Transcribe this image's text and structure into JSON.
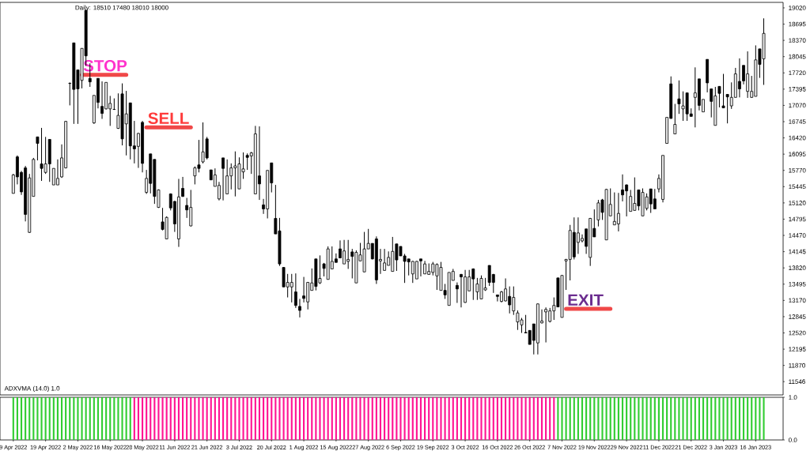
{
  "chart_data": [
    {
      "type": "candlestick",
      "title": "Daily:  18510  17480  18010  18000",
      "categories": [
        "9 Apr 2022",
        null,
        null,
        null,
        null,
        null,
        null,
        null,
        "19 Apr 2022",
        null,
        null,
        null,
        null,
        null,
        null,
        null,
        "2 May 2022",
        null,
        null,
        null,
        null,
        null,
        null,
        null,
        "16 May 2022",
        null,
        null,
        null,
        null,
        null,
        null,
        null,
        "28 May 2022",
        null,
        null,
        null,
        null,
        null,
        null,
        null,
        "11 Jun 2022",
        null,
        null,
        null,
        null,
        null,
        null,
        null,
        "21 Jun 2022",
        null,
        null,
        null,
        null,
        null,
        null,
        null,
        "3 Jul 2022",
        null,
        null,
        null,
        null,
        null,
        null,
        null,
        "20 Jul 2022",
        null,
        null,
        null,
        null,
        null,
        null,
        null,
        "1 Aug 2022",
        null,
        null,
        null,
        null,
        null,
        null,
        null,
        "15 Aug 2022",
        null,
        null,
        null,
        null,
        null,
        null,
        null,
        "27 Aug 2022",
        null,
        null,
        null,
        null,
        null,
        null,
        null,
        "6 Sep 2022",
        null,
        null,
        null,
        null,
        null,
        null,
        null,
        "19 Sep 2022",
        null,
        null,
        null,
        null,
        null,
        null,
        null,
        "3 Oct 2022",
        null,
        null,
        null,
        null,
        null,
        null,
        null,
        "16 Oct 2022",
        null,
        null,
        null,
        null,
        null,
        null,
        null,
        "26 Oct 2022",
        null,
        null,
        null,
        null,
        null,
        null,
        null,
        "7 Nov 2022",
        null,
        null,
        null,
        null,
        null,
        null,
        null,
        "19 Nov 2022",
        null,
        null,
        null,
        null,
        null,
        null,
        null,
        "29 Nov 2022",
        null,
        null,
        null,
        null,
        null,
        null,
        null,
        "11 Dec 2022",
        null,
        null,
        null,
        null,
        null,
        null,
        null,
        "21 Dec 2022",
        null,
        null,
        null,
        null,
        null,
        null,
        null,
        "3 Jan 2023",
        null,
        null,
        null,
        null,
        null,
        null,
        null,
        "16 Jan 2023",
        null,
        null
      ],
      "ohlc": [
        [
          15310,
          15700,
          15310,
          15680
        ],
        [
          16040,
          16070,
          15490,
          15640
        ],
        [
          15730,
          15760,
          15280,
          15340
        ],
        [
          15820,
          15860,
          14750,
          14890
        ],
        [
          14530,
          15700,
          14520,
          15620
        ],
        [
          15250,
          16020,
          15250,
          15990
        ],
        [
          16440,
          16440,
          15970,
          16310
        ],
        [
          15900,
          16620,
          15560,
          15810
        ],
        [
          15730,
          16440,
          15700,
          15900
        ],
        [
          16390,
          16390,
          15540,
          15900
        ],
        [
          15480,
          15810,
          15480,
          15810
        ],
        [
          15480,
          15990,
          15480,
          15610
        ],
        [
          15640,
          16290,
          15620,
          16020
        ],
        [
          15820,
          16760,
          15810,
          16750
        ],
        [
          17510,
          17530,
          17070,
          17510
        ],
        [
          18320,
          18320,
          16700,
          17390
        ],
        [
          17780,
          17780,
          16700,
          17400
        ],
        [
          17570,
          18210,
          17410,
          18210
        ],
        [
          18970,
          18990,
          17860,
          18060
        ],
        [
          17610,
          17910,
          17440,
          17540
        ],
        [
          16720,
          17270,
          16700,
          17270
        ],
        [
          17610,
          17610,
          17010,
          17130
        ],
        [
          17050,
          17550,
          16800,
          16910
        ],
        [
          17000,
          17530,
          16990,
          17530
        ],
        [
          17000,
          17260,
          16660,
          17110
        ],
        [
          16990,
          17210,
          16980,
          16990
        ],
        [
          16610,
          17310,
          16600,
          16870
        ],
        [
          17300,
          17510,
          16270,
          16400
        ],
        [
          16700,
          17360,
          16070,
          16900
        ],
        [
          17120,
          17120,
          15990,
          16260
        ],
        [
          16260,
          16760,
          15910,
          16200
        ],
        [
          16250,
          16520,
          15820,
          16510
        ],
        [
          16730,
          16760,
          15730,
          15910
        ],
        [
          15330,
          15780,
          15300,
          15610
        ],
        [
          16100,
          16100,
          15310,
          15510
        ],
        [
          15990,
          15990,
          15100,
          15250
        ],
        [
          15030,
          15390,
          15020,
          15380
        ],
        [
          14740,
          15020,
          14570,
          14590
        ],
        [
          14400,
          14850,
          14400,
          14830
        ],
        [
          15300,
          15310,
          14970,
          15020
        ],
        [
          15150,
          15160,
          14540,
          14700
        ],
        [
          14400,
          15600,
          14240,
          15240
        ],
        [
          15410,
          15640,
          15240,
          15250
        ],
        [
          15070,
          15220,
          14820,
          14980
        ],
        [
          14660,
          15380,
          14650,
          15030
        ],
        [
          15660,
          15850,
          15490,
          15820
        ],
        [
          15880,
          16380,
          15730,
          15810
        ],
        [
          15940,
          16730,
          15910,
          16140
        ],
        [
          16400,
          16440,
          15990,
          16020
        ],
        [
          15780,
          15780,
          15580,
          15580
        ],
        [
          15450,
          15810,
          15450,
          15680
        ],
        [
          15200,
          15540,
          15170,
          15470
        ],
        [
          16020,
          16020,
          15170,
          15810
        ],
        [
          15300,
          15990,
          15300,
          15660
        ],
        [
          15660,
          15910,
          15390,
          15820
        ],
        [
          15820,
          16150,
          15250,
          15860
        ],
        [
          15400,
          16030,
          15400,
          15900
        ],
        [
          15740,
          16130,
          15600,
          15800
        ],
        [
          16070,
          16110,
          15780,
          16030
        ],
        [
          16060,
          16140,
          15700,
          16120
        ],
        [
          15300,
          16660,
          15300,
          16500
        ],
        [
          15660,
          16650,
          15180,
          15500
        ],
        [
          15080,
          15200,
          14900,
          15000
        ],
        [
          15000,
          15770,
          14810,
          15770
        ],
        [
          15920,
          15920,
          15330,
          15520
        ],
        [
          14810,
          15480,
          14500,
          14500
        ],
        [
          14560,
          14820,
          13860,
          13900
        ],
        [
          13830,
          13830,
          13440,
          13440
        ],
        [
          13440,
          13700,
          13230,
          13530
        ],
        [
          13440,
          13700,
          13130,
          13530
        ],
        [
          13340,
          13710,
          13020,
          13070
        ],
        [
          13050,
          13200,
          12830,
          12970
        ],
        [
          13260,
          13640,
          13130,
          13210
        ],
        [
          13140,
          13540,
          12990,
          13530
        ],
        [
          13370,
          13810,
          13370,
          13520
        ],
        [
          14000,
          14000,
          13370,
          13450
        ],
        [
          13520,
          14070,
          13500,
          13610
        ],
        [
          13900,
          13920,
          13650,
          13810
        ],
        [
          13590,
          14250,
          13590,
          14200
        ],
        [
          13800,
          14250,
          13800,
          13950
        ],
        [
          14000,
          14110,
          13930,
          13930
        ],
        [
          14200,
          14370,
          14020,
          14020
        ],
        [
          13900,
          14380,
          13900,
          14160
        ],
        [
          13950,
          14380,
          13800,
          13990
        ],
        [
          14140,
          14200,
          13610,
          14050
        ],
        [
          13520,
          14170,
          13520,
          14130
        ],
        [
          13960,
          14320,
          13960,
          14080
        ],
        [
          13740,
          14540,
          13740,
          14200
        ],
        [
          14200,
          14600,
          14200,
          14310
        ],
        [
          14310,
          14310,
          13990,
          14000
        ],
        [
          14400,
          14450,
          13500,
          13580
        ],
        [
          13960,
          14200,
          13700,
          13990
        ],
        [
          13770,
          14200,
          13770,
          13920
        ],
        [
          13870,
          14150,
          13870,
          14030
        ],
        [
          13750,
          14440,
          13750,
          14150
        ],
        [
          14300,
          14300,
          13760,
          13980
        ],
        [
          14250,
          14250,
          14060,
          14060
        ],
        [
          14060,
          14100,
          13520,
          13950
        ],
        [
          14000,
          14000,
          13670,
          13940
        ],
        [
          13700,
          13960,
          13520,
          13950
        ],
        [
          13600,
          13960,
          13600,
          13950
        ],
        [
          14000,
          14000,
          13650,
          13960
        ],
        [
          13700,
          13960,
          13700,
          13900
        ],
        [
          13690,
          13910,
          13690,
          13750
        ],
        [
          13730,
          13940,
          13670,
          13900
        ],
        [
          13660,
          13910,
          13380,
          13890
        ],
        [
          13370,
          13940,
          13370,
          13830
        ],
        [
          13370,
          13500,
          13200,
          13280
        ],
        [
          13070,
          13730,
          13070,
          13730
        ],
        [
          13570,
          13800,
          13570,
          13750
        ],
        [
          13470,
          13530,
          13120,
          13400
        ],
        [
          13690,
          13700,
          13030,
          13640
        ],
        [
          13130,
          13780,
          13120,
          13640
        ],
        [
          13360,
          13780,
          13360,
          13640
        ],
        [
          13800,
          13810,
          13180,
          13600
        ],
        [
          13340,
          13620,
          13180,
          13500
        ],
        [
          13200,
          13670,
          13200,
          13610
        ],
        [
          13380,
          13620,
          13360,
          13420
        ],
        [
          13870,
          13870,
          13460,
          13530
        ],
        [
          13690,
          13700,
          13320,
          13530
        ],
        [
          13280,
          13280,
          13150,
          13250
        ],
        [
          13150,
          13360,
          13130,
          13340
        ],
        [
          13160,
          13610,
          13150,
          13400
        ],
        [
          13250,
          13450,
          12910,
          13080
        ],
        [
          12960,
          13450,
          12880,
          13230
        ],
        [
          12740,
          12970,
          12580,
          12920
        ],
        [
          12680,
          12820,
          12520,
          12780
        ],
        [
          12530,
          12880,
          12520,
          12520
        ],
        [
          12570,
          12570,
          12290,
          12290
        ],
        [
          12700,
          12700,
          12090,
          12370
        ],
        [
          12320,
          13110,
          12090,
          13100
        ],
        [
          12720,
          12990,
          12710,
          12760
        ],
        [
          12940,
          13030,
          12330,
          12990
        ],
        [
          12750,
          13020,
          12730,
          12960
        ],
        [
          12960,
          13230,
          12780,
          13070
        ],
        [
          13620,
          13620,
          13040,
          13040
        ],
        [
          12830,
          13670,
          12830,
          13670
        ],
        [
          13960,
          14000,
          13380,
          13990
        ],
        [
          13990,
          14680,
          13570,
          14570
        ],
        [
          14530,
          14830,
          13990,
          14040
        ],
        [
          14330,
          14830,
          14100,
          14520
        ],
        [
          14360,
          14490,
          14330,
          14410
        ],
        [
          14600,
          14600,
          14100,
          14250
        ],
        [
          14030,
          14820,
          13860,
          14810
        ],
        [
          14610,
          14990,
          14440,
          14440
        ],
        [
          14780,
          15180,
          14650,
          15120
        ],
        [
          15180,
          15200,
          14780,
          14930
        ],
        [
          14380,
          15400,
          14380,
          15390
        ],
        [
          14860,
          15410,
          14860,
          15090
        ],
        [
          14680,
          15330,
          14680,
          14750
        ],
        [
          14700,
          15320,
          14550,
          14910
        ],
        [
          15380,
          15690,
          15150,
          15280
        ],
        [
          15480,
          15490,
          14850,
          15360
        ],
        [
          14950,
          15380,
          14950,
          15250
        ],
        [
          14970,
          15630,
          14970,
          15110
        ],
        [
          15380,
          15380,
          14970,
          15060
        ],
        [
          14860,
          15410,
          14860,
          15330
        ],
        [
          15010,
          15310,
          14970,
          15240
        ],
        [
          15400,
          15400,
          14920,
          15100
        ],
        [
          15200,
          15400,
          15000,
          15000
        ],
        [
          15400,
          15690,
          15330,
          15610
        ],
        [
          15190,
          16070,
          15130,
          16070
        ],
        [
          16310,
          16830,
          16310,
          16830
        ],
        [
          17500,
          17650,
          16800,
          16810
        ],
        [
          16500,
          17100,
          16500,
          16690
        ],
        [
          17200,
          17570,
          16900,
          17100
        ],
        [
          17000,
          17350,
          16760,
          17060
        ],
        [
          17320,
          17320,
          16760,
          16900
        ],
        [
          16900,
          17010,
          16850,
          16850
        ],
        [
          17230,
          17830,
          16630,
          17320
        ],
        [
          17600,
          17600,
          16970,
          17070
        ],
        [
          16940,
          17190,
          16940,
          17190
        ],
        [
          17990,
          17990,
          17330,
          17520
        ],
        [
          17400,
          17400,
          16830,
          17150
        ],
        [
          16670,
          17440,
          16670,
          17260
        ],
        [
          17450,
          17450,
          17030,
          17310
        ],
        [
          17060,
          17700,
          17020,
          17020
        ],
        [
          17290,
          17290,
          16710,
          17240
        ],
        [
          17060,
          17530,
          17000,
          17230
        ],
        [
          17230,
          17820,
          17230,
          17700
        ],
        [
          17550,
          18010,
          17230,
          17400
        ],
        [
          17870,
          17870,
          17490,
          17560
        ],
        [
          17350,
          18150,
          17220,
          17700
        ],
        [
          17230,
          17660,
          17220,
          17350
        ],
        [
          17250,
          18270,
          17250,
          17980
        ],
        [
          18200,
          18200,
          17620,
          17890
        ],
        [
          18000,
          18810,
          17480,
          18510
        ]
      ],
      "ylim": [
        11280,
        19130
      ],
      "yticks": [
        19020,
        18695,
        18370,
        18045,
        17720,
        17395,
        17070,
        16745,
        16420,
        16095,
        15770,
        15445,
        15120,
        14795,
        14470,
        14145,
        13820,
        13495,
        13170,
        12845,
        12520,
        12195,
        11870,
        11546
      ],
      "tick_labels": "y",
      "annotations": [
        {
          "text": "STOP",
          "x": "2 May 2022",
          "y": 17680
        },
        {
          "text": "SELL",
          "x": "28 May 2022",
          "y": 16630
        },
        {
          "text": "EXIT",
          "x": "7 Nov 2022",
          "y": 13000
        }
      ]
    },
    {
      "type": "bar",
      "title": "ADXVMA (14.0) 1.0",
      "categories": [
        "9 Apr 2022",
        null,
        null,
        null,
        null,
        null,
        null,
        null,
        "19 Apr 2022",
        null,
        null,
        null,
        null,
        null,
        null,
        null,
        "2 May 2022",
        null,
        null,
        null,
        null,
        null,
        null,
        null,
        "16 May 2022",
        null,
        null,
        null,
        null,
        null,
        null,
        null,
        "28 May 2022",
        null,
        null,
        null,
        null,
        null,
        null,
        null,
        "11 Jun 2022",
        null,
        null,
        null,
        null,
        null,
        null,
        null,
        "21 Jun 2022",
        null,
        null,
        null,
        null,
        null,
        null,
        null,
        "3 Jul 2022",
        null,
        null,
        null,
        null,
        null,
        null,
        null,
        "20 Jul 2022",
        null,
        null,
        null,
        null,
        null,
        null,
        null,
        "1 Aug 2022",
        null,
        null,
        null,
        null,
        null,
        null,
        null,
        "15 Aug 2022",
        null,
        null,
        null,
        null,
        null,
        null,
        null,
        "27 Aug 2022",
        null,
        null,
        null,
        null,
        null,
        null,
        null,
        "6 Sep 2022",
        null,
        null,
        null,
        null,
        null,
        null,
        null,
        "19 Sep 2022",
        null,
        null,
        null,
        null,
        null,
        null,
        null,
        "3 Oct 2022",
        null,
        null,
        null,
        null,
        null,
        null,
        null,
        "16 Oct 2022",
        null,
        null,
        null,
        null,
        null,
        null,
        null,
        "26 Oct 2022",
        null,
        null,
        null,
        null,
        null,
        null,
        null,
        "7 Nov 2022",
        null,
        null,
        null,
        null,
        null,
        null,
        null,
        "19 Nov 2022",
        null,
        null,
        null,
        null,
        null,
        null,
        null,
        "29 Nov 2022",
        null,
        null,
        null,
        null,
        null,
        null,
        null,
        "11 Dec 2022",
        null,
        null,
        null,
        null,
        null,
        null,
        null,
        "21 Dec 2022",
        null,
        null,
        null,
        null,
        null,
        null,
        null,
        "3 Jan 2023",
        null,
        null,
        null,
        null,
        null,
        null,
        null,
        "16 Jan 2023",
        null,
        null
      ],
      "values": [
        1,
        1,
        1,
        1,
        1,
        1,
        1,
        1,
        1,
        1,
        1,
        1,
        1,
        1,
        1,
        1,
        1,
        1,
        1,
        1,
        1,
        1,
        1,
        1,
        1,
        1,
        1,
        1,
        1,
        1,
        1,
        1,
        1,
        1,
        1,
        1,
        1,
        1,
        1,
        1,
        1,
        1,
        1,
        1,
        1,
        1,
        1,
        1,
        1,
        1,
        1,
        1,
        1,
        1,
        1,
        1,
        1,
        1,
        1,
        1,
        1,
        1,
        1,
        1,
        1,
        1,
        1,
        1,
        1,
        1,
        1,
        1,
        1,
        1,
        1,
        1,
        1,
        1,
        1,
        1,
        1,
        1,
        1,
        1,
        1,
        1,
        1,
        1,
        1,
        1,
        1,
        1,
        1,
        1,
        1,
        1,
        1,
        1,
        1,
        1,
        1,
        1,
        1,
        1,
        1,
        1,
        1,
        1,
        1,
        1,
        1,
        1,
        1,
        1,
        1,
        1,
        1,
        1,
        1,
        1,
        1,
        1,
        1,
        1,
        1,
        1,
        1,
        1,
        1,
        1,
        1,
        1,
        1,
        1,
        1,
        1,
        1,
        1,
        1,
        1,
        1,
        1,
        1,
        1,
        1,
        1,
        1,
        1,
        1,
        1,
        1,
        1,
        1,
        1,
        1,
        1,
        1,
        1,
        1,
        1,
        1,
        1,
        1,
        1,
        1,
        1,
        1,
        1,
        1,
        1,
        1,
        1,
        1,
        1,
        1,
        1,
        1,
        1,
        1,
        1,
        1,
        1,
        1,
        1,
        1,
        1,
        1
      ],
      "colors": [
        "#32cd32",
        "#32cd32",
        "#32cd32",
        "#32cd32",
        "#32cd32",
        "#32cd32",
        "#32cd32",
        "#32cd32",
        "#32cd32",
        "#32cd32",
        "#32cd32",
        "#32cd32",
        "#32cd32",
        "#32cd32",
        "#32cd32",
        "#32cd32",
        "#32cd32",
        "#32cd32",
        "#32cd32",
        "#32cd32",
        "#32cd32",
        "#32cd32",
        "#32cd32",
        "#32cd32",
        "#32cd32",
        "#32cd32",
        "#32cd32",
        "#32cd32",
        "#32cd32",
        "#32cd32",
        "#ff1493",
        "#ff1493",
        "#ff1493",
        "#ff1493",
        "#ff1493",
        "#ff1493",
        "#ff1493",
        "#ff1493",
        "#ff1493",
        "#ff1493",
        "#ff1493",
        "#ff1493",
        "#ff1493",
        "#ff1493",
        "#ff1493",
        "#ff1493",
        "#ff1493",
        "#ff1493",
        "#ff1493",
        "#ff1493",
        "#ff1493",
        "#ff1493",
        "#ff1493",
        "#ff1493",
        "#ff1493",
        "#ff1493",
        "#ff1493",
        "#ff1493",
        "#ff1493",
        "#ff1493",
        "#ff1493",
        "#ff1493",
        "#ff1493",
        "#ff1493",
        "#ff1493",
        "#ff1493",
        "#ff1493",
        "#ff1493",
        "#ff1493",
        "#ff1493",
        "#ff1493",
        "#ff1493",
        "#ff1493",
        "#ff1493",
        "#ff1493",
        "#ff1493",
        "#ff1493",
        "#ff1493",
        "#ff1493",
        "#ff1493",
        "#ff1493",
        "#ff1493",
        "#ff1493",
        "#ff1493",
        "#ff1493",
        "#ff1493",
        "#ff1493",
        "#ff1493",
        "#ff1493",
        "#ff1493",
        "#ff1493",
        "#ff1493",
        "#ff1493",
        "#ff1493",
        "#ff1493",
        "#ff1493",
        "#ff1493",
        "#ff1493",
        "#ff1493",
        "#ff1493",
        "#ff1493",
        "#ff1493",
        "#ff1493",
        "#ff1493",
        "#ff1493",
        "#ff1493",
        "#ff1493",
        "#ff1493",
        "#ff1493",
        "#ff1493",
        "#ff1493",
        "#ff1493",
        "#ff1493",
        "#ff1493",
        "#ff1493",
        "#ff1493",
        "#ff1493",
        "#ff1493",
        "#ff1493",
        "#ff1493",
        "#ff1493",
        "#ff1493",
        "#ff1493",
        "#ff1493",
        "#ff1493",
        "#ff1493",
        "#ff1493",
        "#ff1493",
        "#ff1493",
        "#ff1493",
        "#ff1493",
        "#ff1493",
        "#ff1493",
        "#ff1493",
        "#ff1493",
        "#32cd32",
        "#32cd32",
        "#32cd32",
        "#32cd32",
        "#32cd32",
        "#32cd32",
        "#32cd32",
        "#32cd32",
        "#32cd32",
        "#32cd32",
        "#32cd32",
        "#32cd32",
        "#32cd32",
        "#32cd32",
        "#32cd32",
        "#32cd32",
        "#32cd32",
        "#32cd32",
        "#32cd32",
        "#32cd32",
        "#32cd32",
        "#32cd32",
        "#32cd32",
        "#32cd32",
        "#32cd32",
        "#32cd32",
        "#32cd32",
        "#32cd32",
        "#32cd32",
        "#32cd32",
        "#32cd32",
        "#32cd32",
        "#32cd32",
        "#32cd32",
        "#32cd32",
        "#32cd32",
        "#32cd32",
        "#32cd32",
        "#32cd32",
        "#32cd32",
        "#32cd32",
        "#32cd32",
        "#32cd32",
        "#32cd32",
        "#32cd32",
        "#32cd32",
        "#32cd32",
        "#32cd32",
        "#32cd32",
        "#32cd32",
        "#32cd32",
        "#32cd32"
      ],
      "ylim": [
        0,
        1
      ],
      "yticks": [
        {
          "value": 0,
          "label": "0.0"
        },
        {
          "value": 1,
          "label": "1.0"
        }
      ]
    }
  ]
}
